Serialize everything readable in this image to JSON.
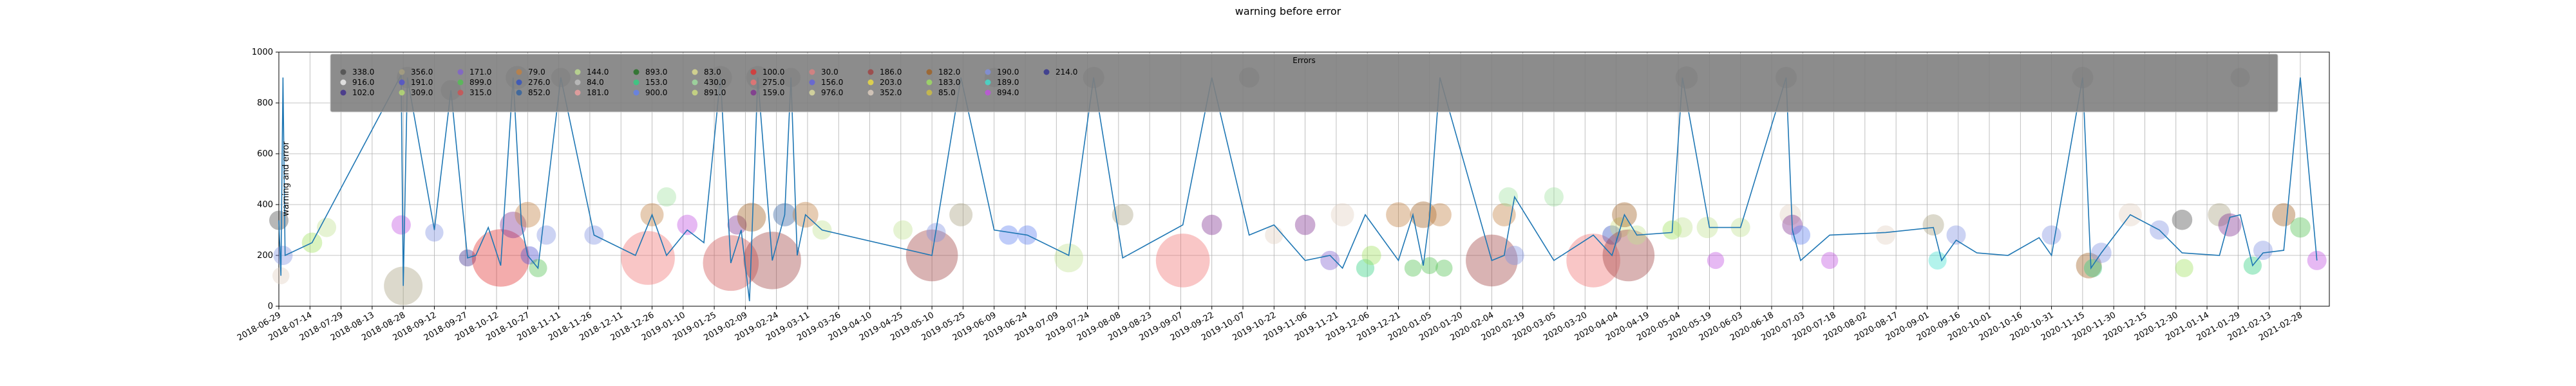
{
  "chart_data": {
    "type": "scatter",
    "title": "warning before error",
    "ylabel": "warning and error",
    "xlabel": "",
    "ylim": [
      0,
      1000
    ],
    "xlim": [
      "2018-06-29",
      "2021-03-14"
    ],
    "yticks": [
      0,
      200,
      400,
      600,
      800,
      1000
    ],
    "xticks": [
      "2018-06-29",
      "2018-07-14",
      "2018-07-29",
      "2018-08-13",
      "2018-08-28",
      "2018-09-12",
      "2018-09-27",
      "2018-10-12",
      "2018-10-27",
      "2018-11-11",
      "2018-11-26",
      "2018-12-11",
      "2018-12-26",
      "2019-01-10",
      "2019-01-25",
      "2019-02-09",
      "2019-02-24",
      "2019-03-11",
      "2019-03-26",
      "2019-04-10",
      "2019-04-25",
      "2019-05-10",
      "2019-05-25",
      "2019-06-09",
      "2019-06-24",
      "2019-07-09",
      "2019-07-24",
      "2019-08-08",
      "2019-08-23",
      "2019-09-07",
      "2019-09-22",
      "2019-10-07",
      "2019-10-22",
      "2019-11-06",
      "2019-11-21",
      "2019-12-06",
      "2019-12-21",
      "2020-01-05",
      "2020-01-20",
      "2020-02-04",
      "2020-02-19",
      "2020-03-05",
      "2020-03-20",
      "2020-04-04",
      "2020-04-19",
      "2020-05-04",
      "2020-05-19",
      "2020-06-03",
      "2020-06-18",
      "2020-07-03",
      "2020-07-18",
      "2020-08-02",
      "2020-08-17",
      "2020-09-01",
      "2020-09-16",
      "2020-10-01",
      "2020-10-16",
      "2020-10-31",
      "2020-11-15",
      "2020-11-30",
      "2020-12-15",
      "2020-12-30",
      "2021-01-14",
      "2021-01-29",
      "2021-02-13",
      "2021-02-28"
    ],
    "grid": true,
    "legend": {
      "title": "Errors",
      "placement": "top",
      "background": "#808080",
      "entries": [
        {
          "label": "338.0",
          "color": "#4b4b4b"
        },
        {
          "label": "916.0",
          "color": "#f2f2f2"
        },
        {
          "label": "102.0",
          "color": "#3d2b8c"
        },
        {
          "label": "356.0",
          "color": "#a8a080"
        },
        {
          "label": "191.0",
          "color": "#5050d0"
        },
        {
          "label": "309.0",
          "color": "#b8e070"
        },
        {
          "label": "171.0",
          "color": "#8060d0"
        },
        {
          "label": "899.0",
          "color": "#50c050"
        },
        {
          "label": "315.0",
          "color": "#d05050"
        },
        {
          "label": "79.0",
          "color": "#c08040"
        },
        {
          "label": "276.0",
          "color": "#3050c0"
        },
        {
          "label": "852.0",
          "color": "#3060a0"
        },
        {
          "label": "144.0",
          "color": "#c0e090"
        },
        {
          "label": "84.0",
          "color": "#c0c0c0"
        },
        {
          "label": "181.0",
          "color": "#f0a0a0"
        },
        {
          "label": "893.0",
          "color": "#207020"
        },
        {
          "label": "153.0",
          "color": "#30d080"
        },
        {
          "label": "900.0",
          "color": "#6080f0"
        },
        {
          "label": "83.0",
          "color": "#e0e090"
        },
        {
          "label": "430.0",
          "color": "#a0e0a0"
        },
        {
          "label": "891.0",
          "color": "#d0e080"
        },
        {
          "label": "100.0",
          "color": "#e03030"
        },
        {
          "label": "275.0",
          "color": "#f07070"
        },
        {
          "label": "159.0",
          "color": "#803090"
        },
        {
          "label": "30.0",
          "color": "#e08080"
        },
        {
          "label": "156.0",
          "color": "#6060e0"
        },
        {
          "label": "976.0",
          "color": "#e0e0a0"
        },
        {
          "label": "186.0",
          "color": "#a04040"
        },
        {
          "label": "203.0",
          "color": "#f0e040"
        },
        {
          "label": "352.0",
          "color": "#e0d0c0"
        },
        {
          "label": "182.0",
          "color": "#a06020"
        },
        {
          "label": "183.0",
          "color": "#a0e060"
        },
        {
          "label": "85.0",
          "color": "#d0c040"
        },
        {
          "label": "190.0",
          "color": "#8090e0"
        },
        {
          "label": "189.0",
          "color": "#40e0d0"
        },
        {
          "label": "894.0",
          "color": "#c050e0"
        },
        {
          "label": "214.0",
          "color": "#303090"
        }
      ]
    },
    "line_color": "#1f77b4",
    "line_series": {
      "x": [
        "2018-06-29",
        "2018-06-30",
        "2018-07-01",
        "2018-07-02",
        "2018-07-15",
        "2018-08-27",
        "2018-08-28",
        "2018-08-30",
        "2018-09-12",
        "2018-09-20",
        "2018-09-28",
        "2018-10-02",
        "2018-10-08",
        "2018-10-14",
        "2018-10-20",
        "2018-10-24",
        "2018-10-27",
        "2018-11-01",
        "2018-11-12",
        "2018-11-28",
        "2018-12-18",
        "2018-12-26",
        "2019-01-02",
        "2019-01-12",
        "2019-01-20",
        "2019-01-28",
        "2019-02-02",
        "2019-02-07",
        "2019-02-11",
        "2019-02-15",
        "2019-02-22",
        "2019-02-28",
        "2019-03-03",
        "2019-03-06",
        "2019-03-10",
        "2019-03-18",
        "2019-05-10",
        "2019-05-24",
        "2019-06-09",
        "2019-06-25",
        "2019-07-15",
        "2019-07-27",
        "2019-08-10",
        "2019-09-08",
        "2019-09-22",
        "2019-10-10",
        "2019-10-22",
        "2019-11-06",
        "2019-11-18",
        "2019-11-24",
        "2019-12-05",
        "2019-12-21",
        "2019-12-28",
        "2020-01-02",
        "2020-01-05",
        "2020-01-10",
        "2020-02-04",
        "2020-02-10",
        "2020-02-15",
        "2020-03-05",
        "2020-03-24",
        "2020-04-02",
        "2020-04-08",
        "2020-04-14",
        "2020-05-01",
        "2020-05-06",
        "2020-05-19",
        "2020-06-03",
        "2020-06-25",
        "2020-06-28",
        "2020-07-02",
        "2020-07-16",
        "2020-08-12",
        "2020-09-04",
        "2020-09-08",
        "2020-09-15",
        "2020-09-25",
        "2020-10-10",
        "2020-10-25",
        "2020-10-31",
        "2020-11-15",
        "2020-11-19",
        "2020-11-24",
        "2020-12-08",
        "2020-12-22",
        "2021-01-02",
        "2021-01-20",
        "2021-01-25",
        "2021-01-30",
        "2021-02-05",
        "2021-02-10",
        "2021-02-20",
        "2021-02-28",
        "2021-03-08"
      ],
      "y": [
        338,
        120,
        900,
        200,
        250,
        910,
        80,
        900,
        300,
        850,
        190,
        200,
        310,
        160,
        900,
        320,
        200,
        150,
        900,
        280,
        200,
        360,
        200,
        300,
        250,
        900,
        170,
        300,
        20,
        900,
        180,
        360,
        900,
        200,
        360,
        300,
        200,
        900,
        300,
        280,
        200,
        900,
        190,
        320,
        900,
        280,
        320,
        180,
        200,
        150,
        360,
        180,
        360,
        160,
        350,
        900,
        180,
        200,
        430,
        180,
        280,
        200,
        360,
        280,
        290,
        900,
        310,
        310,
        900,
        300,
        180,
        280,
        290,
        310,
        180,
        260,
        210,
        200,
        270,
        200,
        900,
        150,
        210,
        360,
        300,
        210,
        200,
        350,
        360,
        160,
        210,
        220,
        900,
        180
      ]
    },
    "points": [
      {
        "x": "2018-06-29",
        "y": 338,
        "s": 900,
        "c": "#4b4b4b"
      },
      {
        "x": "2018-06-30",
        "y": 120,
        "s": 700,
        "c": "#e0d0c0"
      },
      {
        "x": "2018-07-01",
        "y": 200,
        "s": 900,
        "c": "#8090e0"
      },
      {
        "x": "2018-07-15",
        "y": 250,
        "s": 1000,
        "c": "#a0e060"
      },
      {
        "x": "2018-07-22",
        "y": 310,
        "s": 900,
        "c": "#c0e090"
      },
      {
        "x": "2018-08-27",
        "y": 320,
        "s": 900,
        "c": "#c050e0"
      },
      {
        "x": "2018-08-28",
        "y": 80,
        "s": 3600,
        "c": "#a8a080"
      },
      {
        "x": "2018-08-30",
        "y": 900,
        "s": 1100,
        "c": "#4b4b4b"
      },
      {
        "x": "2018-09-12",
        "y": 290,
        "s": 800,
        "c": "#8090e0"
      },
      {
        "x": "2018-09-20",
        "y": 850,
        "s": 1000,
        "c": "#4b4b4b"
      },
      {
        "x": "2018-09-28",
        "y": 190,
        "s": 700,
        "c": "#3d2b8c"
      },
      {
        "x": "2018-10-14",
        "y": 190,
        "s": 8000,
        "c": "#e03030"
      },
      {
        "x": "2018-10-20",
        "y": 320,
        "s": 1700,
        "c": "#803090"
      },
      {
        "x": "2018-10-22",
        "y": 900,
        "s": 1300,
        "c": "#4b4b4b"
      },
      {
        "x": "2018-10-27",
        "y": 360,
        "s": 1600,
        "c": "#c08040"
      },
      {
        "x": "2018-10-28",
        "y": 200,
        "s": 800,
        "c": "#5050d0"
      },
      {
        "x": "2018-11-01",
        "y": 150,
        "s": 800,
        "c": "#50c050"
      },
      {
        "x": "2018-11-05",
        "y": 280,
        "s": 900,
        "c": "#8090e0"
      },
      {
        "x": "2018-11-12",
        "y": 900,
        "s": 900,
        "c": "#4b4b4b"
      },
      {
        "x": "2018-11-28",
        "y": 280,
        "s": 900,
        "c": "#8090e0"
      },
      {
        "x": "2018-12-24",
        "y": 190,
        "s": 7000,
        "c": "#f07070"
      },
      {
        "x": "2018-12-26",
        "y": 360,
        "s": 1300,
        "c": "#c08040"
      },
      {
        "x": "2019-01-02",
        "y": 430,
        "s": 900,
        "c": "#a0e0a0"
      },
      {
        "x": "2019-01-12",
        "y": 320,
        "s": 1000,
        "c": "#c050e0"
      },
      {
        "x": "2019-01-28",
        "y": 900,
        "s": 1300,
        "c": "#4b4b4b"
      },
      {
        "x": "2019-02-02",
        "y": 170,
        "s": 7500,
        "c": "#d05050"
      },
      {
        "x": "2019-02-05",
        "y": 320,
        "s": 900,
        "c": "#803090"
      },
      {
        "x": "2019-02-12",
        "y": 350,
        "s": 2000,
        "c": "#a06020"
      },
      {
        "x": "2019-02-15",
        "y": 900,
        "s": 1300,
        "c": "#4b4b4b"
      },
      {
        "x": "2019-02-22",
        "y": 180,
        "s": 8000,
        "c": "#a04040"
      },
      {
        "x": "2019-02-28",
        "y": 360,
        "s": 1300,
        "c": "#3060a0"
      },
      {
        "x": "2019-03-03",
        "y": 900,
        "s": 900,
        "c": "#4b4b4b"
      },
      {
        "x": "2019-03-10",
        "y": 360,
        "s": 1600,
        "c": "#c08040"
      },
      {
        "x": "2019-03-18",
        "y": 300,
        "s": 900,
        "c": "#c0e090"
      },
      {
        "x": "2019-04-26",
        "y": 300,
        "s": 900,
        "c": "#c0e090"
      },
      {
        "x": "2019-05-10",
        "y": 200,
        "s": 6500,
        "c": "#a04040"
      },
      {
        "x": "2019-05-12",
        "y": 290,
        "s": 900,
        "c": "#8090e0"
      },
      {
        "x": "2019-05-24",
        "y": 360,
        "s": 1300,
        "c": "#a8a080"
      },
      {
        "x": "2019-06-09",
        "y": 900,
        "s": 900,
        "c": "#4b4b4b"
      },
      {
        "x": "2019-06-16",
        "y": 280,
        "s": 900,
        "c": "#6080f0"
      },
      {
        "x": "2019-06-25",
        "y": 280,
        "s": 900,
        "c": "#6080f0"
      },
      {
        "x": "2019-07-15",
        "y": 190,
        "s": 2000,
        "c": "#c0e090"
      },
      {
        "x": "2019-07-27",
        "y": 900,
        "s": 1100,
        "c": "#4b4b4b"
      },
      {
        "x": "2019-08-10",
        "y": 360,
        "s": 1100,
        "c": "#a8a080"
      },
      {
        "x": "2019-09-08",
        "y": 180,
        "s": 7000,
        "c": "#f07070"
      },
      {
        "x": "2019-09-22",
        "y": 320,
        "s": 1000,
        "c": "#803090"
      },
      {
        "x": "2019-10-10",
        "y": 900,
        "s": 1000,
        "c": "#4b4b4b"
      },
      {
        "x": "2019-10-22",
        "y": 280,
        "s": 800,
        "c": "#e0d0c0"
      },
      {
        "x": "2019-11-06",
        "y": 320,
        "s": 1000,
        "c": "#803090"
      },
      {
        "x": "2019-11-18",
        "y": 180,
        "s": 900,
        "c": "#8060d0"
      },
      {
        "x": "2019-11-24",
        "y": 360,
        "s": 1300,
        "c": "#e0d0c0"
      },
      {
        "x": "2019-12-05",
        "y": 150,
        "s": 800,
        "c": "#30d080"
      },
      {
        "x": "2019-12-08",
        "y": 200,
        "s": 900,
        "c": "#a0e060"
      },
      {
        "x": "2019-12-21",
        "y": 360,
        "s": 1500,
        "c": "#c08040"
      },
      {
        "x": "2019-12-28",
        "y": 150,
        "s": 700,
        "c": "#50c050"
      },
      {
        "x": "2020-01-02",
        "y": 360,
        "s": 1700,
        "c": "#a06020"
      },
      {
        "x": "2020-01-05",
        "y": 160,
        "s": 700,
        "c": "#50c050"
      },
      {
        "x": "2020-01-10",
        "y": 360,
        "s": 1300,
        "c": "#c08040"
      },
      {
        "x": "2020-01-12",
        "y": 150,
        "s": 700,
        "c": "#50c050"
      },
      {
        "x": "2020-02-04",
        "y": 180,
        "s": 6500,
        "c": "#a04040"
      },
      {
        "x": "2020-02-10",
        "y": 360,
        "s": 1300,
        "c": "#c08040"
      },
      {
        "x": "2020-02-12",
        "y": 430,
        "s": 900,
        "c": "#a0e0a0"
      },
      {
        "x": "2020-02-15",
        "y": 200,
        "s": 900,
        "c": "#8090e0"
      },
      {
        "x": "2020-03-05",
        "y": 430,
        "s": 900,
        "c": "#a0e0a0"
      },
      {
        "x": "2020-03-24",
        "y": 180,
        "s": 7000,
        "c": "#f07070"
      },
      {
        "x": "2020-04-02",
        "y": 280,
        "s": 900,
        "c": "#3050c0"
      },
      {
        "x": "2020-04-06",
        "y": 310,
        "s": 1000,
        "c": "#d0e080"
      },
      {
        "x": "2020-04-08",
        "y": 360,
        "s": 1500,
        "c": "#a06020"
      },
      {
        "x": "2020-04-10",
        "y": 200,
        "s": 6500,
        "c": "#a04040"
      },
      {
        "x": "2020-04-14",
        "y": 280,
        "s": 900,
        "c": "#c0e090"
      },
      {
        "x": "2020-05-01",
        "y": 300,
        "s": 900,
        "c": "#a0e060"
      },
      {
        "x": "2020-05-06",
        "y": 310,
        "s": 1000,
        "c": "#c0e090"
      },
      {
        "x": "2020-05-08",
        "y": 900,
        "s": 1200,
        "c": "#4b4b4b"
      },
      {
        "x": "2020-05-18",
        "y": 310,
        "s": 1100,
        "c": "#c0e090"
      },
      {
        "x": "2020-05-22",
        "y": 180,
        "s": 700,
        "c": "#c050e0"
      },
      {
        "x": "2020-06-03",
        "y": 310,
        "s": 900,
        "c": "#c0e090"
      },
      {
        "x": "2020-06-25",
        "y": 900,
        "s": 1100,
        "c": "#4b4b4b"
      },
      {
        "x": "2020-06-27",
        "y": 360,
        "s": 1100,
        "c": "#e0d0c0"
      },
      {
        "x": "2020-06-28",
        "y": 320,
        "s": 1000,
        "c": "#803090"
      },
      {
        "x": "2020-07-02",
        "y": 280,
        "s": 900,
        "c": "#6080f0"
      },
      {
        "x": "2020-07-16",
        "y": 180,
        "s": 700,
        "c": "#c050e0"
      },
      {
        "x": "2020-08-12",
        "y": 280,
        "s": 900,
        "c": "#e0d0c0"
      },
      {
        "x": "2020-09-04",
        "y": 320,
        "s": 1100,
        "c": "#a8a080"
      },
      {
        "x": "2020-09-06",
        "y": 180,
        "s": 800,
        "c": "#40e0d0"
      },
      {
        "x": "2020-09-15",
        "y": 280,
        "s": 900,
        "c": "#8090e0"
      },
      {
        "x": "2020-10-31",
        "y": 280,
        "s": 900,
        "c": "#8090e0"
      },
      {
        "x": "2020-11-15",
        "y": 900,
        "s": 1100,
        "c": "#4b4b4b"
      },
      {
        "x": "2020-11-18",
        "y": 160,
        "s": 1600,
        "c": "#a06020"
      },
      {
        "x": "2020-11-20",
        "y": 150,
        "s": 800,
        "c": "#30d080"
      },
      {
        "x": "2020-11-24",
        "y": 210,
        "s": 1000,
        "c": "#8090e0"
      },
      {
        "x": "2020-12-08",
        "y": 360,
        "s": 1300,
        "c": "#e0d0c0"
      },
      {
        "x": "2020-12-22",
        "y": 300,
        "s": 900,
        "c": "#8090e0"
      },
      {
        "x": "2021-01-02",
        "y": 340,
        "s": 1000,
        "c": "#4b4b4b"
      },
      {
        "x": "2021-01-03",
        "y": 150,
        "s": 800,
        "c": "#a0e060"
      },
      {
        "x": "2021-01-20",
        "y": 360,
        "s": 1300,
        "c": "#a8a080"
      },
      {
        "x": "2021-01-25",
        "y": 320,
        "s": 1300,
        "c": "#803090"
      },
      {
        "x": "2021-01-30",
        "y": 900,
        "s": 900,
        "c": "#4b4b4b"
      },
      {
        "x": "2021-02-05",
        "y": 160,
        "s": 800,
        "c": "#30d080"
      },
      {
        "x": "2021-02-10",
        "y": 220,
        "s": 900,
        "c": "#8090e0"
      },
      {
        "x": "2021-02-20",
        "y": 360,
        "s": 1300,
        "c": "#a06020"
      },
      {
        "x": "2021-02-28",
        "y": 310,
        "s": 1000,
        "c": "#50c050"
      },
      {
        "x": "2021-03-08",
        "y": 180,
        "s": 900,
        "c": "#c050e0"
      }
    ]
  }
}
